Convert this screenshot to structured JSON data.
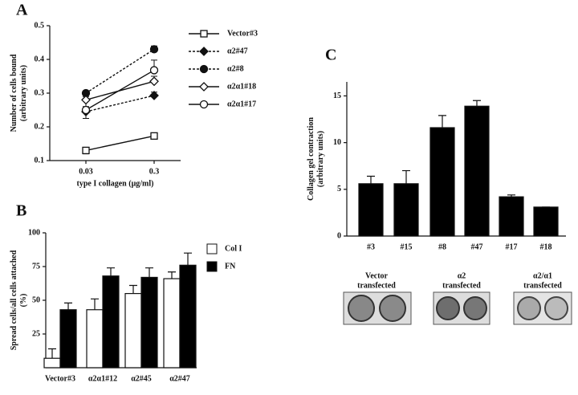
{
  "chart_data": [
    {
      "type": "line",
      "label": "A",
      "ylabel": [
        "Number of cells bound",
        "(arbitrary units)"
      ],
      "xlabel": "type I collagen (μg/ml)",
      "categories": [
        "0.03",
        "0.3"
      ],
      "ylim": [
        0.1,
        0.5
      ],
      "yticks": [
        0.1,
        0.2,
        0.3,
        0.4,
        0.5
      ],
      "series": [
        {
          "name": "Vector#3",
          "marker": "square",
          "filled": false,
          "dashed": false,
          "values": [
            0.13,
            0.173
          ],
          "errors": [
            0.01,
            0.005
          ]
        },
        {
          "name": "α2#47",
          "marker": "diamond",
          "filled": true,
          "dashed": true,
          "values": [
            0.245,
            0.293
          ],
          "errors": [
            0.02,
            0.01
          ]
        },
        {
          "name": "α2#8",
          "marker": "circle",
          "filled": true,
          "dashed": true,
          "values": [
            0.3,
            0.43
          ],
          "errors": [
            0.01,
            0.01
          ]
        },
        {
          "name": "α2α1#18",
          "marker": "diamond",
          "filled": false,
          "dashed": false,
          "values": [
            0.28,
            0.335
          ],
          "errors": [
            0.02,
            0.015
          ]
        },
        {
          "name": "α2α1#17",
          "marker": "circle",
          "filled": false,
          "dashed": false,
          "values": [
            0.25,
            0.368
          ],
          "errors": [
            0.025,
            0.03
          ]
        }
      ]
    },
    {
      "type": "bar",
      "label": "B",
      "ylabel": [
        "Spread cells/all cells attached",
        "(%)"
      ],
      "categories": [
        "Vector#3",
        "α2α1#12",
        "α2#45",
        "α2#47"
      ],
      "ylim": [
        0,
        100
      ],
      "yticks": [
        25,
        50,
        75,
        100
      ],
      "series": [
        {
          "name": "Col I",
          "color": "#ffffff",
          "values": [
            7,
            43,
            55,
            66
          ],
          "errors": [
            7,
            8,
            6,
            5
          ]
        },
        {
          "name": "FN",
          "color": "#000000",
          "values": [
            43,
            68,
            67,
            76
          ],
          "errors": [
            5,
            6,
            7,
            9
          ]
        }
      ]
    },
    {
      "type": "bar",
      "label": "C",
      "ylabel": [
        "Collagen gel contraction",
        "(arbitrary units)"
      ],
      "categories": [
        "#3",
        "#15",
        "#8",
        "#47",
        "#17",
        "#18"
      ],
      "ylim": [
        0,
        16.5
      ],
      "yticks": [
        0,
        5,
        10,
        15
      ],
      "series": [
        {
          "color": "#000000",
          "values": [
            5.6,
            5.6,
            11.6,
            13.9,
            4.2,
            3.1
          ],
          "errors": [
            0.8,
            1.4,
            1.3,
            0.6,
            0.2,
            0
          ]
        }
      ],
      "groups": [
        [
          "Vector",
          "transfected"
        ],
        [
          "α2",
          "transfected"
        ],
        [
          "α2/α1",
          "transfected"
        ]
      ]
    }
  ]
}
